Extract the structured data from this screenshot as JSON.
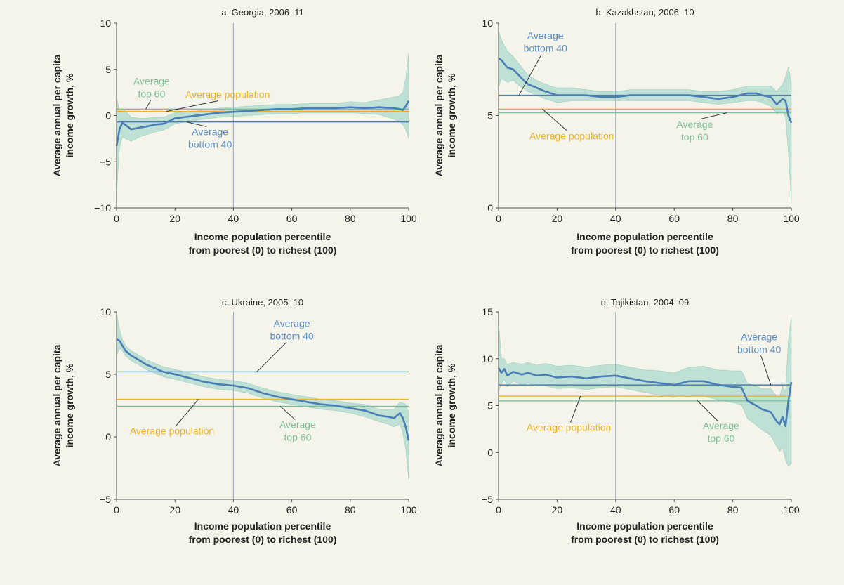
{
  "colors": {
    "background": "#f5f4ea",
    "curve": "#4a7fb5",
    "band": "#bfe0d4",
    "band_edge": "#9fd0c0",
    "bottom40_line": "#4a7fb5",
    "top60_line": "#7cc29a",
    "population_line": "#f0b323",
    "bottom40_text": "#5a8fc6",
    "top60_text": "#7cc29a",
    "population_text": "#f0b323",
    "vline": "#9aa8b6"
  },
  "chart_data": [
    {
      "type": "line",
      "title": "a. Georgia, 2006–11",
      "xlabel": "Income population percentile\nfrom poorest (0) to richest (100)",
      "ylabel": "Average annual per capita\nincome growth, %",
      "xlim": [
        0,
        100
      ],
      "ylim": [
        -10,
        10
      ],
      "xticks": [
        "0",
        "20",
        "40",
        "60",
        "80",
        "100"
      ],
      "yticks": [
        "10",
        "5",
        "0",
        "−5",
        "−10"
      ],
      "ytick_values": [
        10,
        5,
        0,
        -5,
        -10
      ],
      "vline_x": 40,
      "series": [
        {
          "x": [
            0,
            1,
            2,
            3,
            5,
            8,
            10,
            13,
            16,
            20,
            25,
            30,
            35,
            40,
            45,
            50,
            55,
            60,
            65,
            70,
            75,
            80,
            85,
            90,
            95,
            97,
            98,
            99,
            100
          ],
          "y": [
            -3.3,
            -1.5,
            -0.8,
            -1.0,
            -1.5,
            -1.3,
            -1.2,
            -1.0,
            -0.9,
            -0.3,
            -0.1,
            0.1,
            0.3,
            0.4,
            0.5,
            0.6,
            0.7,
            0.7,
            0.8,
            0.8,
            0.8,
            0.9,
            0.8,
            0.9,
            0.8,
            0.7,
            0.6,
            1.0,
            1.6
          ],
          "lower": [
            -8.5,
            -3.5,
            -2.3,
            -2.5,
            -2.8,
            -2.3,
            -2.1,
            -1.8,
            -1.6,
            -0.9,
            -0.6,
            -0.4,
            -0.2,
            -0.1,
            0.0,
            0.1,
            0.2,
            0.2,
            0.3,
            0.3,
            0.3,
            0.3,
            0.2,
            0.1,
            -0.4,
            -0.7,
            -1.0,
            -1.5,
            -2.5
          ],
          "upper": [
            2.0,
            0.5,
            0.7,
            0.5,
            -0.2,
            -0.3,
            -0.3,
            -0.2,
            -0.2,
            0.3,
            0.4,
            0.6,
            0.8,
            0.9,
            1.0,
            1.1,
            1.2,
            1.2,
            1.3,
            1.3,
            1.3,
            1.5,
            1.4,
            1.7,
            2.0,
            2.2,
            2.5,
            4.0,
            6.8
          ]
        }
      ],
      "hlines": {
        "bottom40": -0.7,
        "top60": 0.7,
        "population": 0.45
      },
      "annotations": [
        {
          "key": "top60",
          "lines": [
            "Average",
            "top 60"
          ],
          "tx": 12,
          "ty": 2.65,
          "ax": 10,
          "ay": 0.7
        },
        {
          "key": "population",
          "lines": [
            "Average population"
          ],
          "tx": 38,
          "ty": 1.9,
          "ax": 17,
          "ay": 0.45
        },
        {
          "key": "bottom40",
          "lines": [
            "Average",
            "bottom 40"
          ],
          "tx": 32,
          "ty": -2.8,
          "ax": 24,
          "ay": -0.7
        }
      ]
    },
    {
      "type": "line",
      "title": "b. Kazakhstan, 2006–10",
      "xlabel": "Income population percentile\nfrom poorest (0) to richest (100)",
      "ylabel": "Average annual per capita\nincome growth, %",
      "xlim": [
        0,
        100
      ],
      "ylim": [
        0,
        10
      ],
      "xticks": [
        "0",
        "20",
        "40",
        "60",
        "80",
        "100"
      ],
      "yticks": [
        "10",
        "5",
        "0"
      ],
      "ytick_values": [
        10,
        5,
        0
      ],
      "vline_x": 40,
      "series": [
        {
          "x": [
            0,
            1,
            2,
            3,
            5,
            8,
            10,
            13,
            16,
            20,
            25,
            30,
            35,
            40,
            45,
            50,
            55,
            60,
            65,
            70,
            75,
            80,
            85,
            88,
            90,
            93,
            95,
            97,
            98,
            99,
            100
          ],
          "y": [
            8.1,
            8.0,
            7.8,
            7.6,
            7.5,
            7.0,
            6.7,
            6.5,
            6.3,
            6.1,
            6.1,
            6.1,
            6.0,
            6.0,
            6.1,
            6.1,
            6.1,
            6.1,
            6.1,
            6.0,
            5.9,
            6.0,
            6.2,
            6.2,
            6.1,
            6.0,
            5.6,
            5.9,
            5.8,
            5.0,
            4.6
          ],
          "lower": [
            6.5,
            7.0,
            6.9,
            6.8,
            6.9,
            6.5,
            6.3,
            6.1,
            5.9,
            5.7,
            5.8,
            5.8,
            5.8,
            5.8,
            5.8,
            5.8,
            5.8,
            5.8,
            5.8,
            5.7,
            5.6,
            5.7,
            5.8,
            5.8,
            5.7,
            5.5,
            5.1,
            5.2,
            4.9,
            3.0,
            0.3
          ],
          "upper": [
            9.6,
            9.1,
            8.8,
            8.5,
            8.2,
            7.6,
            7.2,
            6.9,
            6.7,
            6.5,
            6.5,
            6.4,
            6.3,
            6.3,
            6.4,
            6.4,
            6.4,
            6.4,
            6.4,
            6.3,
            6.3,
            6.4,
            6.6,
            6.6,
            6.6,
            6.6,
            6.3,
            6.7,
            7.1,
            7.6,
            6.8
          ]
        }
      ],
      "hlines": {
        "bottom40": 6.1,
        "top60": 5.15,
        "population": 5.35
      },
      "annotations": [
        {
          "key": "bottom40",
          "lines": [
            "Average",
            "bottom 40"
          ],
          "tx": 16,
          "ty": 8.8,
          "ax": 7,
          "ay": 6.1
        },
        {
          "key": "population",
          "lines": [
            "Average population"
          ],
          "tx": 25,
          "ty": 3.7,
          "ax": 15,
          "ay": 5.35
        },
        {
          "key": "top60",
          "lines": [
            "Average",
            "top 60"
          ],
          "tx": 67,
          "ty": 4.0,
          "ax": 78,
          "ay": 5.15
        }
      ]
    },
    {
      "type": "line",
      "title": "c. Ukraine, 2005–10",
      "xlabel": "Income population percentile\nfrom poorest (0) to richest (100)",
      "ylabel": "Average annual per capita\nincome growth, %",
      "xlim": [
        0,
        100
      ],
      "ylim": [
        -5,
        10
      ],
      "xticks": [
        "0",
        "20",
        "40",
        "60",
        "80",
        "100"
      ],
      "yticks": [
        "10",
        "5",
        "0",
        "−5"
      ],
      "ytick_values": [
        10,
        5,
        0,
        -5
      ],
      "vline_x": 40,
      "series": [
        {
          "x": [
            0,
            1,
            2,
            3,
            5,
            8,
            10,
            13,
            16,
            20,
            25,
            30,
            35,
            40,
            45,
            50,
            55,
            60,
            65,
            70,
            75,
            80,
            85,
            90,
            93,
            95,
            97,
            98,
            99,
            100
          ],
          "y": [
            7.8,
            7.7,
            7.3,
            6.9,
            6.5,
            6.1,
            5.8,
            5.5,
            5.2,
            5.0,
            4.7,
            4.4,
            4.2,
            4.1,
            3.9,
            3.5,
            3.2,
            3.0,
            2.8,
            2.6,
            2.5,
            2.3,
            2.1,
            1.7,
            1.6,
            1.5,
            1.9,
            1.5,
            0.8,
            -0.3
          ],
          "lower": [
            6.5,
            7.1,
            6.9,
            6.5,
            6.1,
            5.7,
            5.4,
            5.1,
            4.8,
            4.6,
            4.3,
            4.0,
            3.8,
            3.7,
            3.5,
            3.1,
            2.8,
            2.6,
            2.4,
            2.2,
            2.1,
            1.9,
            1.6,
            1.2,
            1.0,
            0.8,
            1.0,
            0.3,
            -1.0,
            -3.4
          ],
          "upper": [
            10.0,
            8.6,
            7.8,
            7.3,
            6.9,
            6.5,
            6.2,
            5.9,
            5.6,
            5.4,
            5.1,
            4.8,
            4.6,
            4.5,
            4.3,
            3.9,
            3.6,
            3.4,
            3.2,
            3.0,
            2.9,
            2.7,
            2.6,
            2.2,
            2.2,
            2.2,
            2.8,
            2.7,
            2.6,
            2.0
          ]
        }
      ],
      "hlines": {
        "bottom40": 5.2,
        "top60": 2.45,
        "population": 3.0
      },
      "annotations": [
        {
          "key": "bottom40",
          "lines": [
            "Average",
            "bottom 40"
          ],
          "tx": 60,
          "ty": 8.3,
          "ax": 48,
          "ay": 5.2
        },
        {
          "key": "population",
          "lines": [
            "Average population"
          ],
          "tx": 19,
          "ty": 0.2,
          "ax": 28,
          "ay": 3.0
        },
        {
          "key": "top60",
          "lines": [
            "Average",
            "top 60"
          ],
          "tx": 62,
          "ty": 0.2,
          "ax": 56,
          "ay": 2.45
        }
      ]
    },
    {
      "type": "line",
      "title": "d. Tajikistan, 2004–09",
      "xlabel": "Income population percentile\nfrom poorest (0) to richest (100)",
      "ylabel": "Average annual per capita\nincome growth, %",
      "xlim": [
        0,
        100
      ],
      "ylim": [
        -5,
        15
      ],
      "xticks": [
        "0",
        "20",
        "40",
        "60",
        "80",
        "100"
      ],
      "yticks": [
        "15",
        "10",
        "5",
        "0",
        "−5"
      ],
      "ytick_values": [
        15,
        10,
        5,
        0,
        -5
      ],
      "vline_x": 40,
      "series": [
        {
          "x": [
            0,
            1,
            2,
            3,
            5,
            8,
            10,
            13,
            16,
            20,
            25,
            30,
            35,
            40,
            45,
            50,
            55,
            60,
            65,
            70,
            75,
            80,
            83,
            85,
            88,
            90,
            93,
            95,
            96,
            97,
            98,
            99,
            100
          ],
          "y": [
            9.0,
            8.5,
            8.9,
            8.2,
            8.6,
            8.3,
            8.5,
            8.2,
            8.3,
            8.0,
            8.1,
            7.9,
            8.1,
            8.2,
            7.9,
            7.6,
            7.4,
            7.2,
            7.6,
            7.6,
            7.2,
            7.0,
            6.9,
            5.5,
            5.0,
            4.6,
            4.3,
            3.3,
            3.0,
            3.8,
            2.8,
            5.5,
            7.5
          ],
          "lower": [
            6.5,
            7.3,
            7.8,
            7.0,
            7.6,
            7.2,
            7.4,
            7.1,
            7.1,
            6.8,
            6.9,
            6.7,
            6.9,
            7.0,
            6.7,
            6.4,
            6.1,
            5.9,
            6.1,
            6.0,
            5.6,
            5.3,
            5.1,
            3.6,
            2.9,
            2.4,
            1.8,
            0.6,
            0.1,
            0.5,
            -0.8,
            -1.5,
            -1.2
          ],
          "upper": [
            14.0,
            10.0,
            10.0,
            9.4,
            9.6,
            9.4,
            9.6,
            9.3,
            9.5,
            9.2,
            9.3,
            9.1,
            9.3,
            9.4,
            9.1,
            8.8,
            8.7,
            8.5,
            9.1,
            9.2,
            8.8,
            8.7,
            8.7,
            7.4,
            7.1,
            6.8,
            6.8,
            6.0,
            5.9,
            7.1,
            6.4,
            12.0,
            14.5
          ]
        }
      ],
      "hlines": {
        "bottom40": 7.2,
        "top60": 5.5,
        "population": 6.0
      },
      "annotations": [
        {
          "key": "bottom40",
          "lines": [
            "Average",
            "bottom 40"
          ],
          "tx": 89,
          "ty": 11.3,
          "ax": 93,
          "ay": 7.2
        },
        {
          "key": "population",
          "lines": [
            "Average population"
          ],
          "tx": 24,
          "ty": 2.3,
          "ax": 28,
          "ay": 6.0
        },
        {
          "key": "top60",
          "lines": [
            "Average",
            "top 60"
          ],
          "tx": 76,
          "ty": 1.8,
          "ax": 68,
          "ay": 5.5
        }
      ]
    }
  ]
}
